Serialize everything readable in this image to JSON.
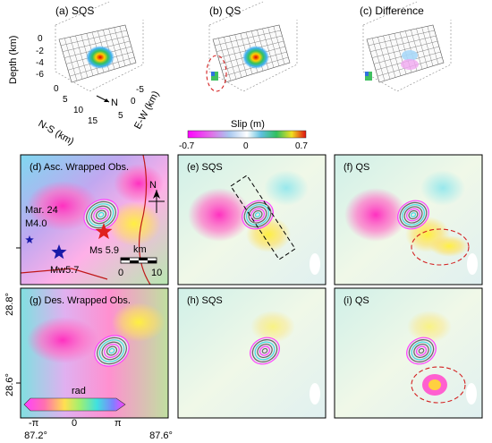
{
  "top_panels": {
    "a": {
      "title": "(a) SQS"
    },
    "b": {
      "title": "(b) QS"
    },
    "c": {
      "title": "(c) Difference"
    }
  },
  "axes3d": {
    "depth_label": "Depth (km)",
    "depth_ticks": [
      "0",
      "-2",
      "-4",
      "-6"
    ],
    "ns_label": "N-S (km)",
    "ns_ticks": [
      "0",
      "5",
      "10",
      "15"
    ],
    "ew_label": "E-W (km)",
    "ew_ticks": [
      "-5",
      "0",
      "5"
    ],
    "north": "N"
  },
  "slip_colorbar": {
    "label": "Slip (m)",
    "ticks": [
      "-0.7",
      "0",
      "0.7"
    ]
  },
  "map_panels": {
    "d": {
      "title": "(d) Asc. Wrapped Obs."
    },
    "e": {
      "title": "(e) SQS"
    },
    "f": {
      "title": "(f) QS"
    },
    "g": {
      "title": "(g) Des. Wrapped Obs."
    },
    "h": {
      "title": "(h) SQS"
    },
    "i": {
      "title": "(i) QS"
    }
  },
  "annotations": {
    "event1_line1": "Mar. 24",
    "event1_line2": "M4.0",
    "event2": "Ms 5.9",
    "event3": "Mw5.7",
    "scale_unit": "km",
    "scale_0": "0",
    "scale_10": "10",
    "north": "N"
  },
  "phase_colorbar": {
    "label": "rad",
    "ticks": [
      "-π",
      "0",
      "π"
    ]
  },
  "map_axes": {
    "lat_ticks": [
      "28.8°",
      "28.6°"
    ],
    "lon_ticks": [
      "87.2°",
      "87.6°"
    ]
  },
  "colors": {
    "star_red": "#e02020",
    "star_blue": "#1a1aa8",
    "dashed_red": "#d42020",
    "fault": "#c01818"
  }
}
